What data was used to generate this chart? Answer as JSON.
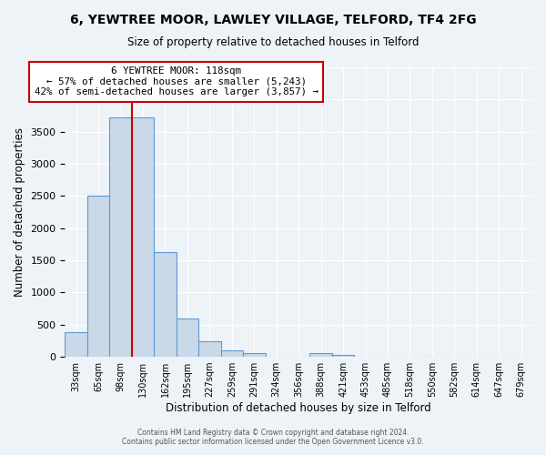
{
  "title": "6, YEWTREE MOOR, LAWLEY VILLAGE, TELFORD, TF4 2FG",
  "subtitle": "Size of property relative to detached houses in Telford",
  "xlabel": "Distribution of detached houses by size in Telford",
  "ylabel": "Number of detached properties",
  "bin_labels": [
    "33sqm",
    "65sqm",
    "98sqm",
    "130sqm",
    "162sqm",
    "195sqm",
    "227sqm",
    "259sqm",
    "291sqm",
    "324sqm",
    "356sqm",
    "388sqm",
    "421sqm",
    "453sqm",
    "485sqm",
    "518sqm",
    "550sqm",
    "582sqm",
    "614sqm",
    "647sqm",
    "679sqm"
  ],
  "bar_values": [
    380,
    2500,
    3720,
    3720,
    1630,
    590,
    240,
    100,
    60,
    0,
    0,
    60,
    30,
    0,
    0,
    0,
    0,
    0,
    0,
    0,
    0
  ],
  "bar_color": "#c9d9e8",
  "bar_edge_color": "#5b9bd5",
  "annotation_text_line1": "6 YEWTREE MOOR: 118sqm",
  "annotation_text_line2": "← 57% of detached houses are smaller (5,243)",
  "annotation_text_line3": "42% of semi-detached houses are larger (3,857) →",
  "annotation_box_color": "#ffffff",
  "annotation_box_edge": "#cc0000",
  "red_line_color": "#cc0000",
  "ylim": [
    0,
    4500
  ],
  "background_color": "#eef3f8",
  "footer_line1": "Contains HM Land Registry data © Crown copyright and database right 2024.",
  "footer_line2": "Contains public sector information licensed under the Open Government Licence v3.0."
}
